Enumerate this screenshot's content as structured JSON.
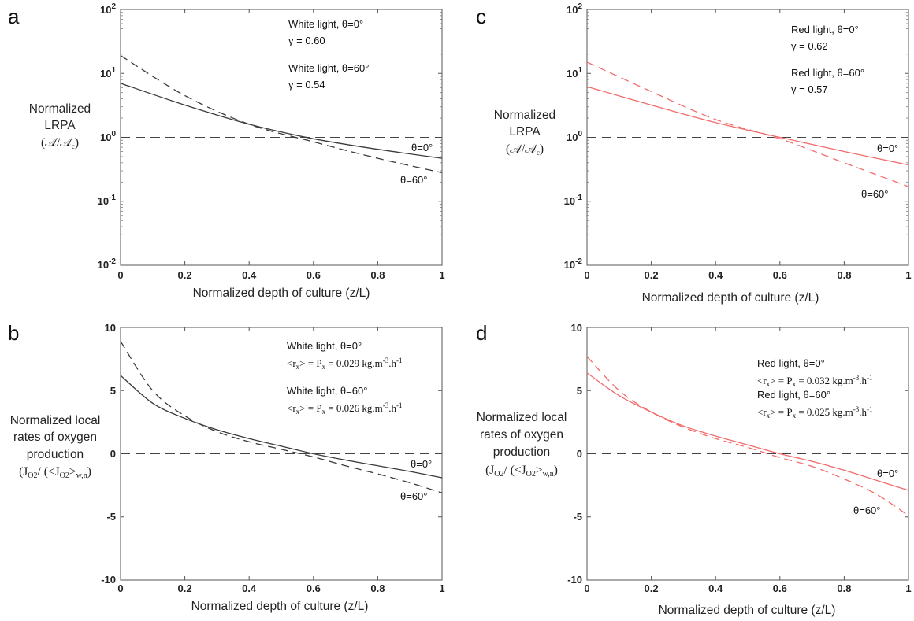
{
  "chart_data": [
    {
      "panel": "a",
      "type": "line",
      "yscale": "log",
      "ylim": [
        0.01,
        100
      ],
      "xlim": [
        0,
        1
      ],
      "xticks": [
        "0",
        "0.2",
        "0.4",
        "0.6",
        "0.8",
        "1"
      ],
      "yticks": [
        "10^-2",
        "10^-1",
        "10^0",
        "10^1",
        "10^2"
      ],
      "xlabel": "Normalized depth of culture (z/L)",
      "ylabel_lines": [
        "Normalized",
        "LRPA"
      ],
      "ylabel_formula": "(𝒜/𝒜c)",
      "color": "#3a3a3a",
      "series": [
        {
          "name": "θ=0°",
          "style": "solid",
          "x": [
            0,
            0.2,
            0.4,
            0.6,
            0.8,
            1.0
          ],
          "y": [
            7.0,
            3.2,
            1.6,
            0.95,
            0.65,
            0.47
          ]
        },
        {
          "name": "θ=60°",
          "style": "dashed",
          "x": [
            0,
            0.2,
            0.4,
            0.6,
            0.8,
            1.0
          ],
          "y": [
            19,
            4.5,
            1.6,
            0.85,
            0.47,
            0.28
          ]
        }
      ],
      "reference_line": 1,
      "annotations": [
        {
          "line1": "White light, θ=0°",
          "line2": "γ = 0.60"
        },
        {
          "line1": "White light, θ=60°",
          "line2": "γ = 0.54"
        }
      ],
      "curve_labels": [
        "θ=0°",
        "θ=60°"
      ]
    },
    {
      "panel": "b",
      "type": "line",
      "yscale": "linear",
      "ylim": [
        -10,
        10
      ],
      "xlim": [
        0,
        1
      ],
      "xticks": [
        "0",
        "0.2",
        "0.4",
        "0.6",
        "0.8",
        "1"
      ],
      "yticks": [
        "-10",
        "-5",
        "0",
        "5",
        "10"
      ],
      "xlabel": "Normalized depth of culture (z/L)",
      "ylabel_lines": [
        "Normalized local",
        "rates of oxygen",
        "production"
      ],
      "ylabel_formula": "(JO2/ (<JO2>w,n)",
      "color": "#3a3a3a",
      "series": [
        {
          "name": "θ=0°",
          "style": "solid",
          "x": [
            0,
            0.1,
            0.2,
            0.3,
            0.4,
            0.5,
            0.6,
            0.7,
            0.8,
            0.9,
            1.0
          ],
          "y": [
            6.2,
            4.0,
            2.8,
            1.9,
            1.2,
            0.6,
            0.0,
            -0.5,
            -0.95,
            -1.4,
            -1.9
          ]
        },
        {
          "name": "θ=60°",
          "style": "dashed",
          "x": [
            0,
            0.1,
            0.2,
            0.3,
            0.4,
            0.5,
            0.6,
            0.7,
            0.8,
            0.9,
            1.0
          ],
          "y": [
            8.9,
            5.0,
            3.0,
            1.75,
            0.95,
            0.35,
            -0.25,
            -0.95,
            -1.6,
            -2.3,
            -3.1
          ]
        }
      ],
      "reference_line": 0,
      "annotations": [
        {
          "line1": "White light, θ=0°",
          "line2": "<rx> = Px = 0.029 kg.m-3.h-1"
        },
        {
          "line1": "White light, θ=60°",
          "line2": "<rx> = Px = 0.026 kg.m-3.h-1"
        }
      ],
      "curve_labels": [
        "θ=0°",
        "θ=60°"
      ]
    },
    {
      "panel": "c",
      "type": "line",
      "yscale": "log",
      "ylim": [
        0.01,
        100
      ],
      "xlim": [
        0,
        1
      ],
      "xticks": [
        "0",
        "0.2",
        "0.4",
        "0.6",
        "0.8",
        "1"
      ],
      "yticks": [
        "10^-2",
        "10^-1",
        "10^0",
        "10^1",
        "10^2"
      ],
      "xlabel": "Normalized depth of culture (z/L)",
      "ylabel_lines": [
        "Normalized",
        "LRPA"
      ],
      "ylabel_formula": "(𝒜/𝒜c)",
      "color": "#f26b6b",
      "series": [
        {
          "name": "θ=0°",
          "style": "solid",
          "x": [
            0,
            0.2,
            0.4,
            0.6,
            0.8,
            1.0
          ],
          "y": [
            6.2,
            3.2,
            1.7,
            1.0,
            0.6,
            0.37
          ]
        },
        {
          "name": "θ=60°",
          "style": "dashed",
          "x": [
            0,
            0.2,
            0.4,
            0.6,
            0.8,
            1.0
          ],
          "y": [
            15,
            5.2,
            1.9,
            0.95,
            0.4,
            0.17
          ]
        }
      ],
      "reference_line": 1,
      "annotations": [
        {
          "line1": "Red light, θ=0°",
          "line2": "γ = 0.62"
        },
        {
          "line1": "Red light, θ=60°",
          "line2": "γ = 0.57"
        }
      ],
      "curve_labels": [
        "θ=0°",
        "θ=60°"
      ]
    },
    {
      "panel": "d",
      "type": "line",
      "yscale": "linear",
      "ylim": [
        -10,
        10
      ],
      "xlim": [
        0,
        1
      ],
      "xticks": [
        "0",
        "0.2",
        "0.4",
        "0.6",
        "0.8",
        "1"
      ],
      "yticks": [
        "-10",
        "-5",
        "0",
        "5",
        "10"
      ],
      "xlabel": "Normalized depth of culture (z/L)",
      "ylabel_lines": [
        "Normalized local",
        "rates of oxygen",
        "production"
      ],
      "ylabel_formula": "(JO2/ (<JO2>w,n)",
      "color": "#f26b6b",
      "series": [
        {
          "name": "θ=0°",
          "style": "solid",
          "x": [
            0,
            0.1,
            0.2,
            0.3,
            0.4,
            0.5,
            0.6,
            0.7,
            0.8,
            0.9,
            1.0
          ],
          "y": [
            6.4,
            4.6,
            3.3,
            2.2,
            1.4,
            0.7,
            0.0,
            -0.6,
            -1.3,
            -2.1,
            -2.9
          ]
        },
        {
          "name": "θ=60°",
          "style": "dashed",
          "x": [
            0,
            0.1,
            0.2,
            0.3,
            0.4,
            0.5,
            0.6,
            0.7,
            0.8,
            0.9,
            1.0
          ],
          "y": [
            7.7,
            5.0,
            3.3,
            2.1,
            1.2,
            0.5,
            -0.3,
            -1.0,
            -2.0,
            -3.2,
            -4.9
          ]
        }
      ],
      "reference_line": 0,
      "annotations": [
        {
          "line1": "Red light, θ=0°",
          "line2": "<rx> = Px = 0.032 kg.m-3.h-1"
        },
        {
          "line1": "Red light, θ=60°",
          "line2": "<rx> = Px = 0.025 kg.m-3.h-1"
        }
      ],
      "curve_labels": [
        "θ=0°",
        "θ=60°"
      ]
    }
  ]
}
